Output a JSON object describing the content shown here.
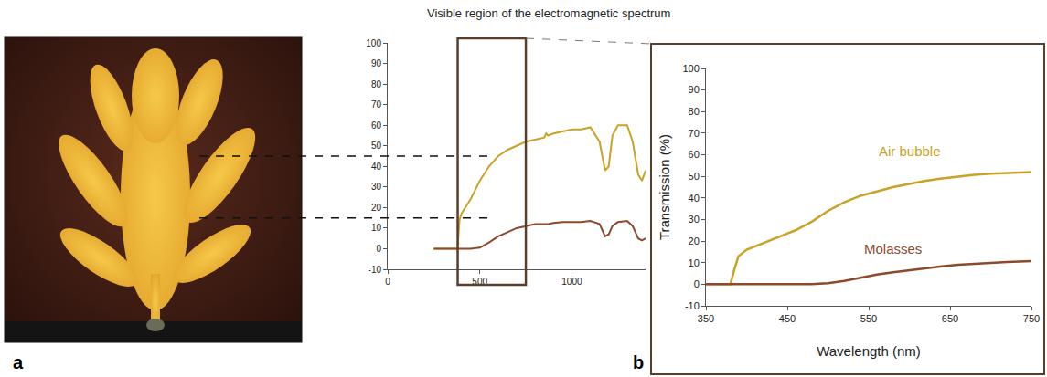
{
  "panel_labels": [
    "a",
    "b"
  ],
  "chart_data": [
    {
      "type": "line",
      "title": "Visible region of the electromagnetic spectrum",
      "x": [
        250,
        300,
        350,
        380,
        385,
        390,
        400,
        450,
        500,
        550,
        600,
        650,
        700,
        750,
        800,
        850,
        860,
        870,
        900,
        950,
        1000,
        1050,
        1100,
        1150,
        1180,
        1200,
        1220,
        1250,
        1300,
        1330,
        1360,
        1380,
        1400
      ],
      "series": [
        {
          "color": "#c9a227",
          "values": [
            0,
            0,
            0,
            0,
            8,
            14,
            17,
            24,
            33,
            40,
            45,
            48,
            50,
            52,
            53,
            54,
            56,
            55,
            56,
            57,
            58,
            58,
            59,
            52,
            38,
            40,
            55,
            60,
            60,
            52,
            36,
            33,
            38
          ]
        },
        {
          "color": "#8b4a2b",
          "values": [
            0,
            0,
            0,
            0,
            0,
            0,
            0,
            0,
            0.5,
            3,
            6,
            8,
            10,
            11,
            12,
            12,
            12,
            12,
            12.5,
            13,
            13,
            13,
            13.5,
            12,
            6,
            7,
            11,
            13,
            13.5,
            11,
            5,
            4,
            5
          ]
        }
      ],
      "xlim": [
        0,
        1400
      ],
      "xticks": [
        0,
        500,
        1000
      ],
      "ylim": [
        -10,
        100
      ],
      "yticks": [
        -10,
        0,
        10,
        20,
        30,
        40,
        50,
        60,
        70,
        80,
        90,
        100
      ],
      "grid": false,
      "highlight_x": [
        380,
        750
      ],
      "pointers": [
        {
          "x": 565,
          "y": 45
        },
        {
          "x": 555,
          "y": 15
        }
      ]
    },
    {
      "type": "line",
      "xlabel": "Wavelength (nm)",
      "ylabel": "Transmission (%)",
      "x": [
        350,
        370,
        380,
        385,
        390,
        400,
        420,
        440,
        460,
        480,
        500,
        520,
        540,
        560,
        580,
        600,
        620,
        640,
        660,
        680,
        700,
        720,
        750
      ],
      "series": [
        {
          "name": "Air bubble",
          "color": "#c9a227",
          "values": [
            0,
            0,
            0,
            7,
            13,
            16,
            19,
            22,
            25,
            29,
            34,
            38,
            41,
            43,
            45,
            46.5,
            48,
            49,
            50,
            50.7,
            51.2,
            51.6,
            52
          ]
        },
        {
          "name": "Molasses",
          "color": "#8b4a2b",
          "values": [
            0,
            0,
            0,
            0,
            0,
            0,
            0,
            0,
            0,
            0,
            0.5,
            1.5,
            3,
            4.5,
            5.5,
            6.5,
            7.5,
            8.3,
            9,
            9.5,
            9.9,
            10.3,
            10.7
          ]
        }
      ],
      "xlim": [
        350,
        750
      ],
      "xticks": [
        350,
        450,
        550,
        650,
        750
      ],
      "ylim": [
        -10,
        100
      ],
      "yticks": [
        -10,
        0,
        10,
        20,
        30,
        40,
        50,
        60,
        70,
        80,
        90,
        100
      ],
      "grid": false
    }
  ]
}
